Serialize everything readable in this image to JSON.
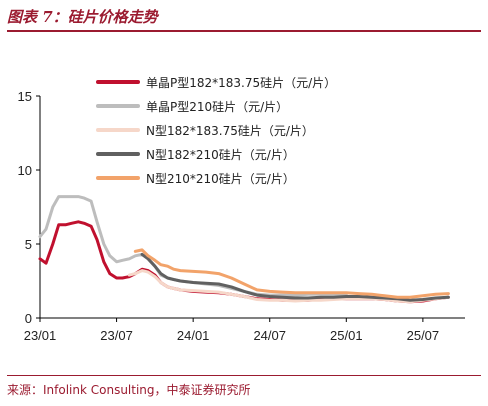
{
  "header": {
    "title": "图表 7：硅片价格走势"
  },
  "footer": {
    "source": "来源：Infolink Consulting，中泰证券研究所"
  },
  "chart_data": {
    "type": "line",
    "title": "",
    "xlabel": "",
    "ylabel": "",
    "ylim": [
      0,
      15
    ],
    "y_ticks": [
      "0",
      "5",
      "10",
      "15"
    ],
    "x_ticks": [
      "23/01",
      "23/07",
      "24/01",
      "24/07",
      "25/01",
      "25/07"
    ],
    "x_tick_values": [
      "2023-01",
      "2023-07",
      "2024-01",
      "2024-07",
      "2025-01",
      "2025-07"
    ],
    "grid": false,
    "legend_position": "top",
    "series": [
      {
        "name": "单晶P型182*183.75硅片（元/片）",
        "color": "#C0102E",
        "x": [
          "2023-01",
          "2023-01-15",
          "2023-02",
          "2023-02-15",
          "2023-03",
          "2023-03-15",
          "2023-04",
          "2023-04-15",
          "2023-05",
          "2023-05-15",
          "2023-06",
          "2023-06-15",
          "2023-07",
          "2023-07-15",
          "2023-08",
          "2023-08-15",
          "2023-09",
          "2023-09-15",
          "2023-10",
          "2023-10-15",
          "2023-11",
          "2023-11-15",
          "2023-12",
          "2024-01",
          "2024-02",
          "2024-03",
          "2024-04",
          "2024-05",
          "2024-06",
          "2024-07",
          "2024-08",
          "2024-09",
          "2024-10",
          "2024-11",
          "2024-12",
          "2025-01",
          "2025-02",
          "2025-03",
          "2025-04",
          "2025-05",
          "2025-06",
          "2025-07",
          "2025-08",
          "2025-09"
        ],
        "y": [
          4.0,
          3.7,
          5.0,
          6.3,
          6.3,
          6.4,
          6.5,
          6.4,
          6.2,
          5.3,
          3.8,
          3.0,
          2.7,
          2.7,
          2.8,
          3.0,
          3.3,
          3.2,
          2.9,
          2.4,
          2.1,
          2.0,
          1.9,
          1.8,
          1.75,
          1.7,
          1.6,
          1.45,
          1.3,
          1.25,
          1.2,
          1.2,
          1.2,
          1.25,
          1.3,
          1.3,
          1.3,
          1.3,
          1.25,
          1.15,
          1.1,
          1.15,
          1.3,
          1.4
        ]
      },
      {
        "name": "单晶P型210硅片（元/片）",
        "color": "#BDBDBD",
        "x": [
          "2023-01",
          "2023-01-15",
          "2023-02",
          "2023-02-15",
          "2023-03",
          "2023-03-15",
          "2023-04",
          "2023-04-15",
          "2023-05",
          "2023-05-15",
          "2023-06",
          "2023-06-15",
          "2023-07",
          "2023-07-15",
          "2023-08",
          "2023-08-15",
          "2023-09",
          "2023-09-15",
          "2023-10",
          "2023-10-15",
          "2023-11",
          "2023-11-15",
          "2023-12",
          "2024-01",
          "2024-02",
          "2024-03",
          "2024-04",
          "2024-05",
          "2024-06",
          "2024-07",
          "2024-08",
          "2024-09",
          "2024-10",
          "2024-11",
          "2024-12",
          "2025-01"
        ],
        "y": [
          5.5,
          6.0,
          7.5,
          8.2,
          8.2,
          8.2,
          8.2,
          8.1,
          7.9,
          6.5,
          5.0,
          4.2,
          3.8,
          3.9,
          4.0,
          4.2,
          4.3,
          4.0,
          3.5,
          2.9,
          2.7,
          2.6,
          2.5,
          2.4,
          2.3,
          2.2,
          2.0,
          1.8,
          1.6,
          1.55,
          1.55,
          1.55,
          1.6,
          1.6,
          1.6,
          1.6
        ]
      },
      {
        "name": "N型182*183.75硅片（元/片）",
        "color": "#F6D7C9",
        "x": [
          "2023-08",
          "2023-08-15",
          "2023-09",
          "2023-09-15",
          "2023-10",
          "2023-10-15",
          "2023-11",
          "2023-11-15",
          "2023-12",
          "2024-01",
          "2024-02",
          "2024-03",
          "2024-04",
          "2024-05",
          "2024-06",
          "2024-07",
          "2024-08",
          "2024-09",
          "2024-10",
          "2024-11",
          "2024-12",
          "2025-01",
          "2025-02",
          "2025-03",
          "2025-04",
          "2025-05",
          "2025-06",
          "2025-07",
          "2025-08",
          "2025-09"
        ],
        "y": [
          2.9,
          3.0,
          3.2,
          3.1,
          2.8,
          2.4,
          2.1,
          2.0,
          1.9,
          1.85,
          1.8,
          1.75,
          1.6,
          1.45,
          1.25,
          1.2,
          1.2,
          1.15,
          1.2,
          1.2,
          1.25,
          1.3,
          1.3,
          1.3,
          1.25,
          1.15,
          1.1,
          1.2,
          1.3,
          1.4
        ]
      },
      {
        "name": "N型182*210硅片（元/片）",
        "color": "#606060",
        "x": [
          "2023-09",
          "2023-09-15",
          "2023-10",
          "2023-10-15",
          "2023-11",
          "2023-11-15",
          "2023-12",
          "2024-01",
          "2024-02",
          "2024-03",
          "2024-04",
          "2024-05",
          "2024-06",
          "2024-07",
          "2024-08",
          "2024-09",
          "2024-10",
          "2024-11",
          "2024-12",
          "2025-01",
          "2025-02",
          "2025-03",
          "2025-04",
          "2025-05",
          "2025-06",
          "2025-07",
          "2025-08",
          "2025-09"
        ],
        "y": [
          4.3,
          4.0,
          3.5,
          3.0,
          2.7,
          2.6,
          2.5,
          2.4,
          2.35,
          2.3,
          2.1,
          1.8,
          1.55,
          1.45,
          1.4,
          1.35,
          1.35,
          1.4,
          1.4,
          1.45,
          1.45,
          1.4,
          1.35,
          1.3,
          1.2,
          1.25,
          1.35,
          1.4
        ]
      },
      {
        "name": "N型210*210硅片（元/片）",
        "color": "#F2A36A",
        "x": [
          "2023-08-15",
          "2023-09",
          "2023-09-15",
          "2023-10",
          "2023-10-15",
          "2023-11",
          "2023-11-15",
          "2023-12",
          "2024-01",
          "2024-02",
          "2024-03",
          "2024-04",
          "2024-05",
          "2024-06",
          "2024-07",
          "2024-08",
          "2024-09",
          "2024-10",
          "2024-11",
          "2024-12",
          "2025-01",
          "2025-02",
          "2025-03",
          "2025-04",
          "2025-05",
          "2025-06",
          "2025-07",
          "2025-08",
          "2025-09"
        ],
        "y": [
          4.5,
          4.6,
          4.2,
          3.9,
          3.6,
          3.5,
          3.3,
          3.2,
          3.15,
          3.1,
          3.0,
          2.7,
          2.3,
          1.9,
          1.8,
          1.75,
          1.7,
          1.7,
          1.7,
          1.7,
          1.7,
          1.65,
          1.6,
          1.5,
          1.4,
          1.4,
          1.5,
          1.6,
          1.65
        ]
      }
    ]
  }
}
